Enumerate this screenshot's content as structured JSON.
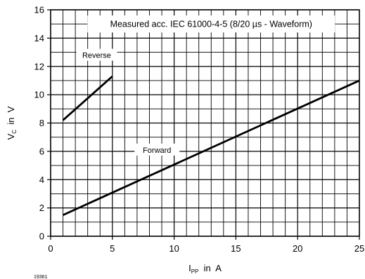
{
  "chart_data": {
    "type": "line",
    "title": "Measured acc. IEC 61000-4-5 (8/20 µs - Waveform)",
    "xlabel": {
      "main": "I",
      "sub": "PP",
      "rest": "  in  A"
    },
    "ylabel": {
      "main": "V",
      "sub": "C",
      "rest": "  in  V"
    },
    "xlim": [
      0,
      25
    ],
    "ylim": [
      0,
      16
    ],
    "xticks": [
      0,
      5,
      10,
      15,
      20,
      25
    ],
    "yticks": [
      0,
      2,
      4,
      6,
      8,
      10,
      12,
      14,
      16
    ],
    "x_minor_step": 1,
    "y_minor_step": 1,
    "grid": true,
    "series": [
      {
        "name": "Reverse",
        "x": [
          1,
          5
        ],
        "y": [
          8.2,
          11.3
        ]
      },
      {
        "name": "Forward",
        "x": [
          1,
          25
        ],
        "y": [
          1.5,
          11.0
        ]
      }
    ],
    "figure_id": "19361"
  }
}
